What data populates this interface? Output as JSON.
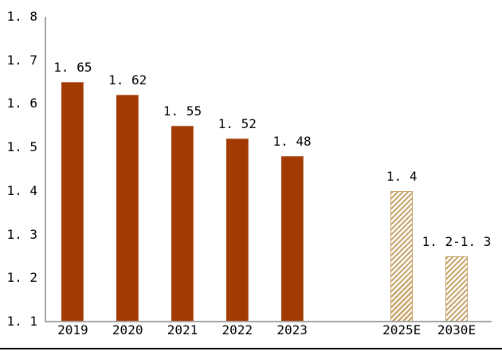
{
  "chart_data": {
    "type": "bar",
    "title": "",
    "xlabel": "",
    "ylabel": "",
    "categories": [
      "2019",
      "2020",
      "2021",
      "2022",
      "2023",
      "2025E",
      "2030E"
    ],
    "values": [
      1.65,
      1.62,
      1.55,
      1.52,
      1.48,
      1.4,
      1.25
    ],
    "data_labels": [
      "1. 65",
      "1. 62",
      "1. 55",
      "1. 52",
      "1. 48",
      "1. 4",
      "1. 2-1. 3"
    ],
    "ylim": [
      1.1,
      1.8
    ],
    "ytick_step": 0.1,
    "grid": false,
    "legend": false,
    "series": [
      {
        "name": "actual",
        "style": "solid",
        "points": [
          {
            "category": "2019",
            "value": 1.65,
            "label": "1. 65",
            "slot": 0
          },
          {
            "category": "2020",
            "value": 1.62,
            "label": "1. 62",
            "slot": 1
          },
          {
            "category": "2021",
            "value": 1.55,
            "label": "1. 55",
            "slot": 2
          },
          {
            "category": "2022",
            "value": 1.52,
            "label": "1. 52",
            "slot": 3
          },
          {
            "category": "2023",
            "value": 1.48,
            "label": "1. 48",
            "slot": 4
          }
        ]
      },
      {
        "name": "forecast-hatched",
        "style": "hatched",
        "points": [
          {
            "category": "2025E",
            "value": 1.4,
            "label": "1. 4",
            "slot": 6
          },
          {
            "category": "2030E",
            "value": 1.25,
            "label": "1. 2-1. 3",
            "slot": 7
          }
        ]
      }
    ],
    "yticks": [
      {
        "value": 1.8,
        "label": "1. 8"
      },
      {
        "value": 1.7,
        "label": "1. 7"
      },
      {
        "value": 1.6,
        "label": "1. 6"
      },
      {
        "value": 1.5,
        "label": "1. 5"
      },
      {
        "value": 1.4,
        "label": "1. 4"
      },
      {
        "value": 1.3,
        "label": "1. 3"
      },
      {
        "value": 1.2,
        "label": "1. 2"
      },
      {
        "value": 1.1,
        "label": "1. 1"
      }
    ],
    "colors": {
      "solid_bar": "#a23a02",
      "hatch_bar": "#c8a46b",
      "axis": "#a3a3a3",
      "bottom_rule": "#000000",
      "background": "#ffffff",
      "text": "#000000"
    }
  }
}
